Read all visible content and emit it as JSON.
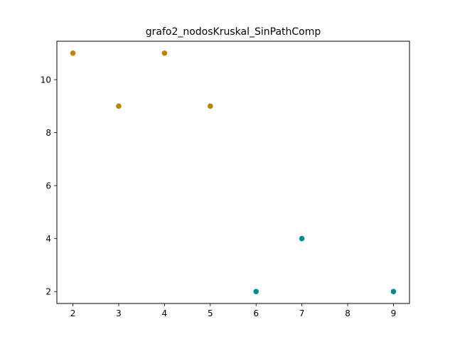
{
  "chart_data": {
    "type": "scatter",
    "title": "grafo2_nodosKruskal_SinPathComp",
    "xlabel": "",
    "ylabel": "",
    "xlim": [
      1.65,
      9.35
    ],
    "ylim": [
      1.55,
      11.45
    ],
    "xticks": [
      2,
      3,
      4,
      5,
      6,
      7,
      8,
      9
    ],
    "yticks": [
      2,
      4,
      6,
      8,
      10
    ],
    "grid": false,
    "legend": "none",
    "series": [
      {
        "color": "#b8860b",
        "points": [
          {
            "x": 2,
            "y": 11
          },
          {
            "x": 3,
            "y": 9
          },
          {
            "x": 4,
            "y": 11
          },
          {
            "x": 5,
            "y": 9
          }
        ]
      },
      {
        "color": "#008b8b",
        "points": [
          {
            "x": 6,
            "y": 2
          },
          {
            "x": 7,
            "y": 4
          },
          {
            "x": 9,
            "y": 2
          }
        ]
      }
    ]
  }
}
